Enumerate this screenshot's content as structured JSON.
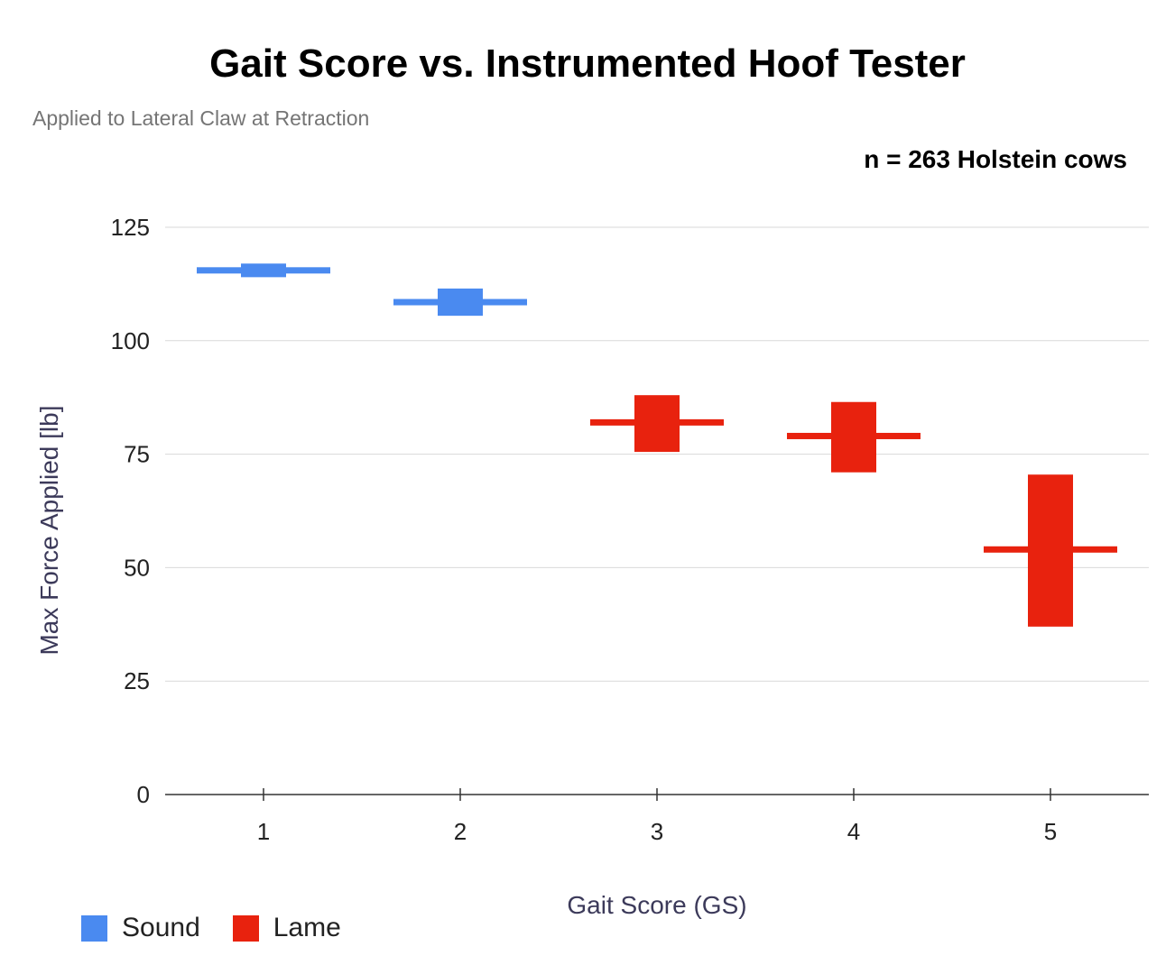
{
  "chart_data": {
    "type": "candlestick",
    "title": "Gait Score vs. Instrumented Hoof Tester",
    "subtitle": "Applied to Lateral Claw at Retraction",
    "annotation": "n = 263 Holstein cows",
    "xlabel": "Gait Score (GS)",
    "ylabel": "Max Force Applied [lb]",
    "ylim": [
      0,
      125
    ],
    "yticks": [
      0,
      25,
      50,
      75,
      100,
      125
    ],
    "categories": [
      "1",
      "2",
      "3",
      "4",
      "5"
    ],
    "grid": true,
    "legend_position": "bottom-left",
    "series": [
      {
        "name": "Sound",
        "color": "#4a8af0",
        "points": [
          {
            "x": "1",
            "median": 115.5,
            "low": 114,
            "high": 117
          },
          {
            "x": "2",
            "median": 108.5,
            "low": 105.5,
            "high": 111.5
          }
        ]
      },
      {
        "name": "Lame",
        "color": "#e8220e",
        "points": [
          {
            "x": "3",
            "median": 82,
            "low": 75.5,
            "high": 88
          },
          {
            "x": "4",
            "median": 79,
            "low": 71,
            "high": 86.5
          },
          {
            "x": "5",
            "median": 54,
            "low": 37,
            "high": 70.5
          }
        ]
      }
    ]
  }
}
